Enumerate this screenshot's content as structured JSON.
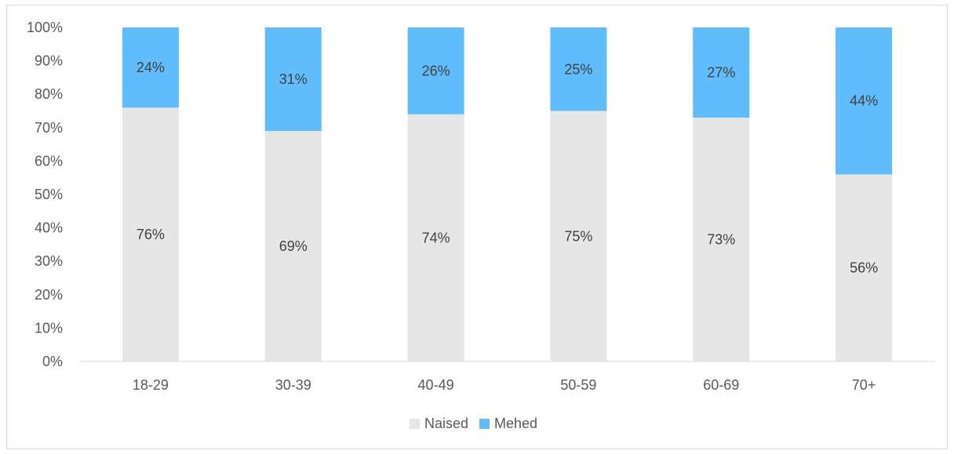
{
  "chart_data": {
    "type": "bar",
    "stacked": true,
    "percent": true,
    "categories": [
      "18-29",
      "30-39",
      "40-49",
      "50-59",
      "60-69",
      "70+"
    ],
    "series": [
      {
        "name": "Naised",
        "values": [
          76,
          69,
          74,
          75,
          73,
          56
        ],
        "color": "#e7e6e6"
      },
      {
        "name": "Mehed",
        "values": [
          24,
          31,
          26,
          25,
          27,
          44
        ],
        "color": "#61bcfb"
      }
    ],
    "ylim": [
      0,
      100
    ],
    "yticks": [
      "0%",
      "10%",
      "20%",
      "30%",
      "40%",
      "50%",
      "60%",
      "70%",
      "80%",
      "90%",
      "100%"
    ],
    "legend": "bottom",
    "grid": false
  }
}
